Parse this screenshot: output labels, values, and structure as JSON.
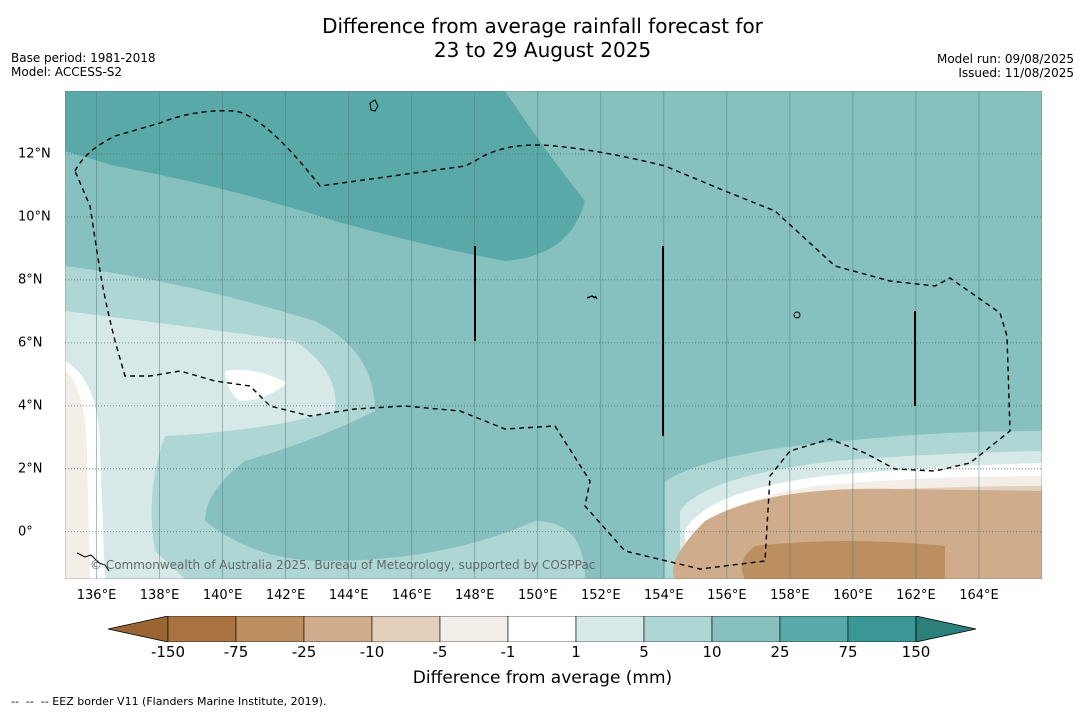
{
  "title_line1": "Difference from average rainfall forecast for",
  "title_line2": "23 to 29 August 2025",
  "base_period": "Base period: 1981-2018",
  "model": "Model: ACCESS-S2",
  "model_run": "Model run: 09/08/2025",
  "issued": "Issued: 11/08/2025",
  "copyright": "© Commonwealth of Australia 2025. Bureau of Meteorology, supported by COSPPac",
  "map": {
    "lon_range": [
      135,
      166
    ],
    "lat_range": [
      -1.5,
      14
    ],
    "x_ticks": [
      "136°E",
      "138°E",
      "140°E",
      "142°E",
      "144°E",
      "146°E",
      "148°E",
      "150°E",
      "152°E",
      "154°E",
      "156°E",
      "158°E",
      "160°E",
      "162°E",
      "164°E"
    ],
    "x_tick_values": [
      136,
      138,
      140,
      142,
      144,
      146,
      148,
      150,
      152,
      154,
      156,
      158,
      160,
      162,
      164
    ],
    "y_ticks": [
      "12°N",
      "10°N",
      "8°N",
      "6°N",
      "4°N",
      "2°N",
      "0°"
    ],
    "y_tick_values": [
      12,
      10,
      8,
      6,
      4,
      2,
      0
    ]
  },
  "colorbar": {
    "labels": [
      "-150",
      "-75",
      "-25",
      "-10",
      "-5",
      "-1",
      "1",
      "5",
      "10",
      "25",
      "75",
      "150"
    ],
    "colors": [
      "#a87340",
      "#bb8f60",
      "#cfad8c",
      "#e3cfbc",
      "#f3eee7",
      "#ffffff",
      "#d6e9e8",
      "#aed6d4",
      "#86c0bf",
      "#5aa9a9",
      "#3b9795"
    ],
    "extend_low_color": "#996633",
    "extend_high_color": "#2b807c",
    "title": "Difference from average (mm)"
  },
  "footnote": "--  --  -- EEZ border V11 (Flanders Marine Institute, 2019)."
}
